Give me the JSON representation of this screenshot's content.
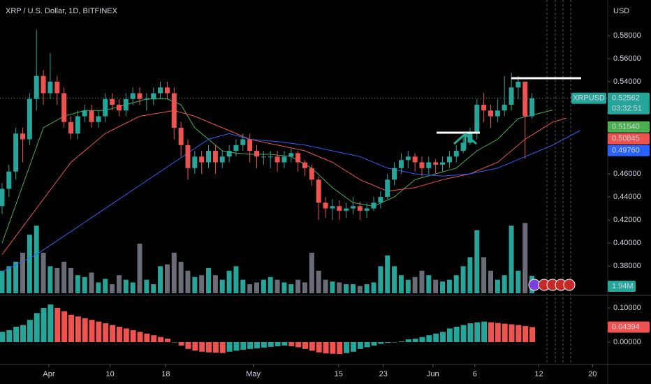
{
  "chart_data": {
    "type": "candlestick",
    "title": "XRP / U.S. Dollar, 1D, BITFINEX",
    "currency": "USD",
    "symbol": "XRPUSD",
    "countdown": "03:32:51",
    "xlim": [
      -0.3,
      88
    ],
    "xticks": [
      {
        "value": 6.8,
        "label": "Apr"
      },
      {
        "value": 15.7,
        "label": "10"
      },
      {
        "value": 23.8,
        "label": "18"
      },
      {
        "value": 36.5,
        "label": "May"
      },
      {
        "value": 48.9,
        "label": "15"
      },
      {
        "value": 55.4,
        "label": "23"
      },
      {
        "value": 62.6,
        "label": "Jun"
      },
      {
        "value": 68.7,
        "label": "6"
      },
      {
        "value": 78.0,
        "label": "12"
      },
      {
        "value": 85.8,
        "label": "20"
      }
    ],
    "ylim": [
      0.3552,
      0.6109
    ],
    "yticks": [
      {
        "value": 0.58,
        "label": "0.58000"
      },
      {
        "value": 0.56,
        "label": "0.56000"
      },
      {
        "value": 0.54,
        "label": "0.54000"
      },
      {
        "value": 0.46,
        "label": "0.46000"
      },
      {
        "value": 0.44,
        "label": "0.44000"
      },
      {
        "value": 0.42,
        "label": "0.42000"
      },
      {
        "value": 0.4,
        "label": "0.40000"
      },
      {
        "value": 0.38,
        "label": "0.38000"
      }
    ],
    "up_color": "#26a69a",
    "down_color": "#ef5350",
    "open": [
      0.432,
      0.447,
      0.462,
      0.495,
      0.49,
      0.525,
      0.545,
      0.53,
      0.54,
      0.53,
      0.505,
      0.495,
      0.51,
      0.515,
      0.505,
      0.51,
      0.525,
      0.52,
      0.515,
      0.525,
      0.53,
      0.525,
      0.525,
      0.53,
      0.535,
      0.53,
      0.5,
      0.485,
      0.465,
      0.475,
      0.47,
      0.48,
      0.47,
      0.475,
      0.48,
      0.485,
      0.49,
      0.48,
      0.475,
      0.475,
      0.475,
      0.47,
      0.475,
      0.478,
      0.47,
      0.465,
      0.455,
      0.435,
      0.43,
      0.432,
      0.428,
      0.43,
      0.432,
      0.428,
      0.43,
      0.435,
      0.44,
      0.455,
      0.465,
      0.472,
      0.475,
      0.47,
      0.465,
      0.47,
      0.468,
      0.47,
      0.475,
      0.48,
      0.487,
      0.495,
      0.52,
      0.515,
      0.51,
      0.515,
      0.52,
      0.535,
      0.54,
      0.51
    ],
    "high": [
      0.452,
      0.468,
      0.5,
      0.5,
      0.53,
      0.585,
      0.55,
      0.565,
      0.545,
      0.535,
      0.51,
      0.515,
      0.52,
      0.52,
      0.515,
      0.53,
      0.53,
      0.525,
      0.53,
      0.535,
      0.535,
      0.53,
      0.535,
      0.54,
      0.54,
      0.535,
      0.505,
      0.49,
      0.48,
      0.48,
      0.485,
      0.485,
      0.48,
      0.485,
      0.49,
      0.495,
      0.495,
      0.485,
      0.48,
      0.48,
      0.48,
      0.48,
      0.482,
      0.48,
      0.472,
      0.468,
      0.458,
      0.44,
      0.438,
      0.437,
      0.435,
      0.44,
      0.436,
      0.435,
      0.44,
      0.445,
      0.46,
      0.47,
      0.478,
      0.48,
      0.478,
      0.475,
      0.475,
      0.473,
      0.475,
      0.48,
      0.485,
      0.492,
      0.5,
      0.525,
      0.53,
      0.52,
      0.525,
      0.545,
      0.548,
      0.545,
      0.54,
      0.53
    ],
    "low": [
      0.425,
      0.44,
      0.455,
      0.47,
      0.485,
      0.515,
      0.52,
      0.525,
      0.52,
      0.5,
      0.49,
      0.49,
      0.505,
      0.5,
      0.5,
      0.505,
      0.515,
      0.51,
      0.51,
      0.52,
      0.52,
      0.515,
      0.52,
      0.525,
      0.525,
      0.49,
      0.475,
      0.455,
      0.46,
      0.46,
      0.465,
      0.46,
      0.465,
      0.47,
      0.475,
      0.48,
      0.47,
      0.465,
      0.468,
      0.465,
      0.462,
      0.465,
      0.47,
      0.462,
      0.458,
      0.45,
      0.42,
      0.422,
      0.42,
      0.42,
      0.422,
      0.425,
      0.42,
      0.422,
      0.428,
      0.43,
      0.438,
      0.45,
      0.46,
      0.465,
      0.462,
      0.458,
      0.46,
      0.46,
      0.462,
      0.465,
      0.47,
      0.478,
      0.485,
      0.49,
      0.505,
      0.5,
      0.505,
      0.51,
      0.515,
      0.525,
      0.473,
      0.508
    ],
    "close": [
      0.447,
      0.462,
      0.495,
      0.49,
      0.525,
      0.545,
      0.53,
      0.54,
      0.53,
      0.505,
      0.495,
      0.51,
      0.515,
      0.505,
      0.51,
      0.525,
      0.52,
      0.515,
      0.525,
      0.53,
      0.525,
      0.525,
      0.53,
      0.535,
      0.53,
      0.5,
      0.485,
      0.465,
      0.475,
      0.47,
      0.48,
      0.47,
      0.475,
      0.48,
      0.485,
      0.49,
      0.48,
      0.475,
      0.475,
      0.475,
      0.47,
      0.475,
      0.478,
      0.47,
      0.465,
      0.455,
      0.435,
      0.43,
      0.432,
      0.428,
      0.43,
      0.432,
      0.428,
      0.43,
      0.435,
      0.44,
      0.455,
      0.465,
      0.472,
      0.475,
      0.47,
      0.465,
      0.47,
      0.468,
      0.47,
      0.475,
      0.48,
      0.487,
      0.495,
      0.52,
      0.515,
      0.51,
      0.515,
      0.52,
      0.535,
      0.54,
      0.51,
      0.5256
    ],
    "last_price": {
      "value": 0.52562,
      "label": "0.52562"
    },
    "moving_averages": [
      {
        "color": "#4caf50",
        "x": [
          0,
          3,
          6,
          9,
          12,
          15,
          18,
          21,
          24,
          26,
          28,
          30,
          32,
          34,
          36,
          39,
          42,
          45,
          48,
          51,
          54,
          57,
          60,
          63,
          66,
          69,
          72,
          75,
          80
        ],
        "values": [
          0.4,
          0.45,
          0.5,
          0.51,
          0.515,
          0.515,
          0.52,
          0.525,
          0.525,
          0.52,
          0.5,
          0.49,
          0.48,
          0.478,
          0.477,
          0.477,
          0.475,
          0.465,
          0.448,
          0.435,
          0.432,
          0.44,
          0.455,
          0.46,
          0.465,
          0.48,
          0.49,
          0.508,
          0.5154
        ],
        "last": {
          "value": 0.5154,
          "label": "0.51540"
        }
      },
      {
        "color": "#ef5350",
        "x": [
          0,
          5,
          10,
          15,
          20,
          25,
          28,
          32,
          36,
          40,
          44,
          48,
          52,
          56,
          60,
          64,
          68,
          72,
          76,
          80,
          82
        ],
        "values": [
          0.39,
          0.43,
          0.47,
          0.495,
          0.51,
          0.515,
          0.51,
          0.5,
          0.49,
          0.485,
          0.48,
          0.47,
          0.455,
          0.445,
          0.448,
          0.455,
          0.46,
          0.47,
          0.49,
          0.505,
          0.50845
        ],
        "last": {
          "value": 0.50845,
          "label": "0.50845"
        }
      },
      {
        "color": "#2962ff",
        "x": [
          0,
          5,
          10,
          15,
          20,
          25,
          30,
          33,
          36,
          40,
          44,
          48,
          52,
          56,
          60,
          64,
          68,
          72,
          76,
          80,
          84
        ],
        "values": [
          0.375,
          0.39,
          0.41,
          0.43,
          0.45,
          0.47,
          0.49,
          0.495,
          0.49,
          0.488,
          0.485,
          0.48,
          0.475,
          0.465,
          0.46,
          0.458,
          0.46,
          0.465,
          0.475,
          0.485,
          0.4976
        ],
        "last": {
          "value": 0.4976,
          "label": "0.49760"
        }
      }
    ],
    "volume": {
      "ylim": [
        0,
        10
      ],
      "up_color": "#26a69a",
      "down_color": "#6a6d78",
      "values": [
        2.5,
        3.0,
        3.5,
        4.5,
        6.5,
        7.5,
        4.5,
        3.0,
        2.8,
        3.5,
        2.8,
        2.0,
        1.8,
        2.3,
        1.2,
        1.6,
        1.0,
        2.0,
        1.5,
        1.2,
        5.5,
        1.5,
        1.0,
        3.0,
        3.2,
        4.5,
        3.5,
        2.5,
        1.8,
        2.0,
        2.8,
        2.0,
        1.5,
        2.5,
        3.0,
        1.5,
        1.0,
        1.2,
        1.5,
        1.8,
        1.5,
        1.2,
        1.0,
        1.5,
        1.2,
        4.5,
        2.5,
        1.5,
        1.3,
        1.2,
        1.0,
        1.0,
        0.8,
        1.0,
        1.2,
        3.0,
        4.2,
        3.0,
        2.0,
        1.5,
        1.8,
        2.5,
        2.0,
        1.5,
        1.3,
        1.5,
        2.0,
        3.0,
        4.0,
        7.0,
        4.0,
        2.5,
        1.5,
        2.0,
        7.5,
        2.5,
        7.8,
        1.94
      ],
      "last": {
        "value": 1.94,
        "label": "1.94M"
      }
    },
    "macd": {
      "ylim": [
        -0.0653,
        0.1327
      ],
      "yticks": [
        {
          "value": 0.1,
          "label": "0.10000"
        },
        {
          "value": 0,
          "label": "0.00000"
        }
      ],
      "rise_color": "#26a69a",
      "fall_color": "#ef5350",
      "values": [
        0.03,
        0.035,
        0.045,
        0.05,
        0.065,
        0.085,
        0.1,
        0.11,
        0.1,
        0.09,
        0.08,
        0.075,
        0.07,
        0.065,
        0.06,
        0.055,
        0.05,
        0.045,
        0.04,
        0.035,
        0.03,
        0.025,
        0.02,
        0.015,
        0.01,
        0.0,
        -0.01,
        -0.02,
        -0.025,
        -0.028,
        -0.03,
        -0.031,
        -0.032,
        -0.028,
        -0.025,
        -0.022,
        -0.02,
        -0.018,
        -0.016,
        -0.014,
        -0.012,
        -0.01,
        -0.012,
        -0.015,
        -0.02,
        -0.025,
        -0.03,
        -0.033,
        -0.034,
        -0.035,
        -0.032,
        -0.028,
        -0.02,
        -0.015,
        -0.01,
        -0.005,
        -0.002,
        0.0,
        0.002,
        0.008,
        0.01,
        0.015,
        0.02,
        0.025,
        0.03,
        0.04,
        0.045,
        0.05,
        0.055,
        0.058,
        0.06,
        0.058,
        0.056,
        0.054,
        0.052,
        0.05,
        0.047,
        0.04394
      ],
      "last": {
        "value": 0.04394,
        "label": "0.04394"
      }
    }
  }
}
